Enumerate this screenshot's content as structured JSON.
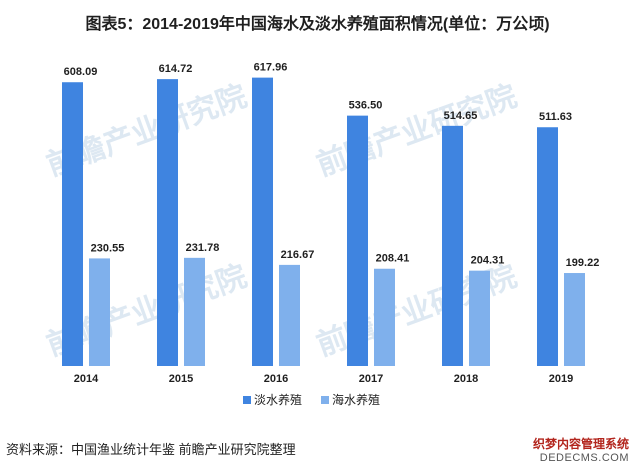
{
  "title": "图表5：2014-2019年中国海水及淡水养殖面积情况(单位：万公顷)",
  "source": "资料来源：中国渔业统计年鉴 前瞻产业研究院整理",
  "watermark": {
    "logo_text": "前瞻产业研究院",
    "corner_line1": "织梦内容管理系统",
    "corner_line2": "DEDECMS.COM"
  },
  "colors": {
    "freshwater": "#3f84e0",
    "seawater": "#7fb0ec",
    "label": "#1f1f1f",
    "watermark": "#dde8f2"
  },
  "chart_data": {
    "type": "bar",
    "categories": [
      "2014",
      "2015",
      "2016",
      "2017",
      "2018",
      "2019"
    ],
    "series": [
      {
        "name": "淡水养殖",
        "values": [
          608.09,
          614.72,
          617.96,
          536.5,
          514.65,
          511.63
        ]
      },
      {
        "name": "海水养殖",
        "values": [
          230.55,
          231.78,
          216.67,
          208.41,
          204.31,
          199.22
        ]
      }
    ],
    "ylim": [
      0,
      660
    ],
    "grid": false,
    "legend_position": "bottom-center",
    "xlabel": "",
    "ylabel": ""
  }
}
